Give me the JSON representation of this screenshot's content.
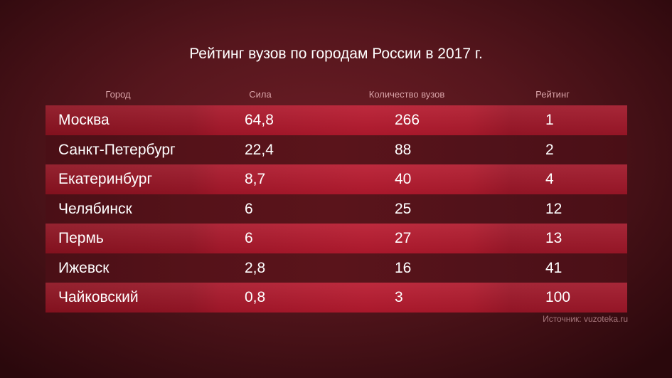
{
  "chart_data": {
    "type": "table",
    "title": "Рейтинг вузов по городам России в 2017 г.",
    "columns": [
      "Город",
      "Сила",
      "Количество вузов",
      "Рейтинг"
    ],
    "rows": [
      [
        "Москва",
        "64,8",
        "266",
        "1"
      ],
      [
        "Санкт-Петербург",
        "22,4",
        "88",
        "2"
      ],
      [
        "Екатеринбург",
        "8,7",
        "40",
        "4"
      ],
      [
        "Челябинск",
        "6",
        "25",
        "12"
      ],
      [
        "Пермь",
        "6",
        "27",
        "13"
      ],
      [
        "Ижевск",
        "2,8",
        "16",
        "41"
      ],
      [
        "Чайковский",
        "0,8",
        "3",
        "100"
      ]
    ],
    "source": "Источник: vuzoteka.ru"
  },
  "colors": {
    "background": "#56161d",
    "row_highlight": "#b81a2f",
    "row_dark": "#551219",
    "header_text": "#d9a3a8",
    "source_text": "#a8787d"
  }
}
